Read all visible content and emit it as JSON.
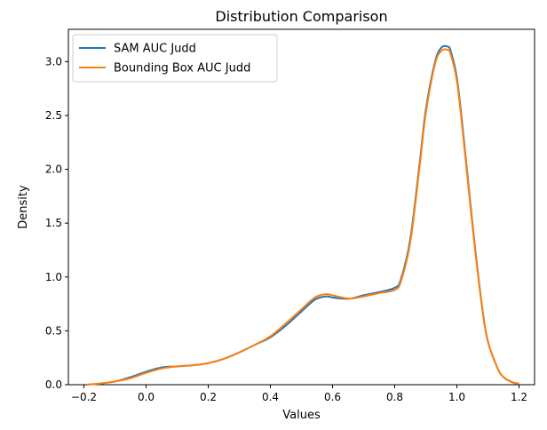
{
  "chart_data": {
    "type": "line",
    "title": "Distribution Comparison",
    "xlabel": "Values",
    "ylabel": "Density",
    "xlim": [
      -0.25,
      1.25
    ],
    "ylim": [
      0.0,
      3.3
    ],
    "xticks": [
      -0.2,
      0.0,
      0.2,
      0.4,
      0.6,
      0.8,
      1.0,
      1.2
    ],
    "xtick_labels": [
      "−0.2",
      "0.0",
      "0.2",
      "0.4",
      "0.6",
      "0.8",
      "1.0",
      "1.2"
    ],
    "yticks": [
      0.0,
      0.5,
      1.0,
      1.5,
      2.0,
      2.5,
      3.0
    ],
    "ytick_labels": [
      "0.0",
      "0.5",
      "1.0",
      "1.5",
      "2.0",
      "2.5",
      "3.0"
    ],
    "grid": false,
    "legend": "top-left",
    "series": [
      {
        "name": "SAM AUC Judd",
        "color": "#1f77b4",
        "x": [
          -0.19,
          -0.15,
          -0.1,
          -0.05,
          0.0,
          0.05,
          0.1,
          0.15,
          0.2,
          0.25,
          0.3,
          0.35,
          0.4,
          0.45,
          0.5,
          0.53,
          0.55,
          0.58,
          0.6,
          0.63,
          0.66,
          0.7,
          0.75,
          0.8,
          0.82,
          0.85,
          0.88,
          0.9,
          0.93,
          0.95,
          0.97,
          0.98,
          1.0,
          1.02,
          1.05,
          1.08,
          1.1,
          1.13,
          1.15,
          1.18,
          1.2
        ],
        "y": [
          0.0,
          0.01,
          0.03,
          0.07,
          0.12,
          0.16,
          0.17,
          0.18,
          0.2,
          0.24,
          0.3,
          0.37,
          0.44,
          0.55,
          0.68,
          0.76,
          0.8,
          0.82,
          0.81,
          0.8,
          0.8,
          0.83,
          0.86,
          0.9,
          0.98,
          1.35,
          2.05,
          2.55,
          3.0,
          3.13,
          3.14,
          3.1,
          2.85,
          2.35,
          1.5,
          0.75,
          0.4,
          0.16,
          0.07,
          0.02,
          0.01
        ]
      },
      {
        "name": "Bounding Box AUC Judd",
        "color": "#ff7f0e",
        "x": [
          -0.19,
          -0.15,
          -0.1,
          -0.05,
          0.0,
          0.05,
          0.1,
          0.15,
          0.2,
          0.25,
          0.3,
          0.35,
          0.4,
          0.45,
          0.5,
          0.53,
          0.55,
          0.58,
          0.6,
          0.63,
          0.66,
          0.7,
          0.75,
          0.8,
          0.82,
          0.85,
          0.88,
          0.9,
          0.93,
          0.95,
          0.97,
          0.98,
          1.0,
          1.02,
          1.05,
          1.08,
          1.1,
          1.13,
          1.15,
          1.18,
          1.2
        ],
        "y": [
          0.0,
          0.01,
          0.03,
          0.06,
          0.11,
          0.15,
          0.17,
          0.18,
          0.2,
          0.24,
          0.3,
          0.37,
          0.45,
          0.57,
          0.7,
          0.78,
          0.82,
          0.84,
          0.83,
          0.81,
          0.8,
          0.82,
          0.85,
          0.88,
          0.96,
          1.32,
          2.02,
          2.52,
          2.98,
          3.1,
          3.11,
          3.07,
          2.82,
          2.32,
          1.48,
          0.74,
          0.4,
          0.16,
          0.07,
          0.02,
          0.01
        ]
      }
    ]
  }
}
